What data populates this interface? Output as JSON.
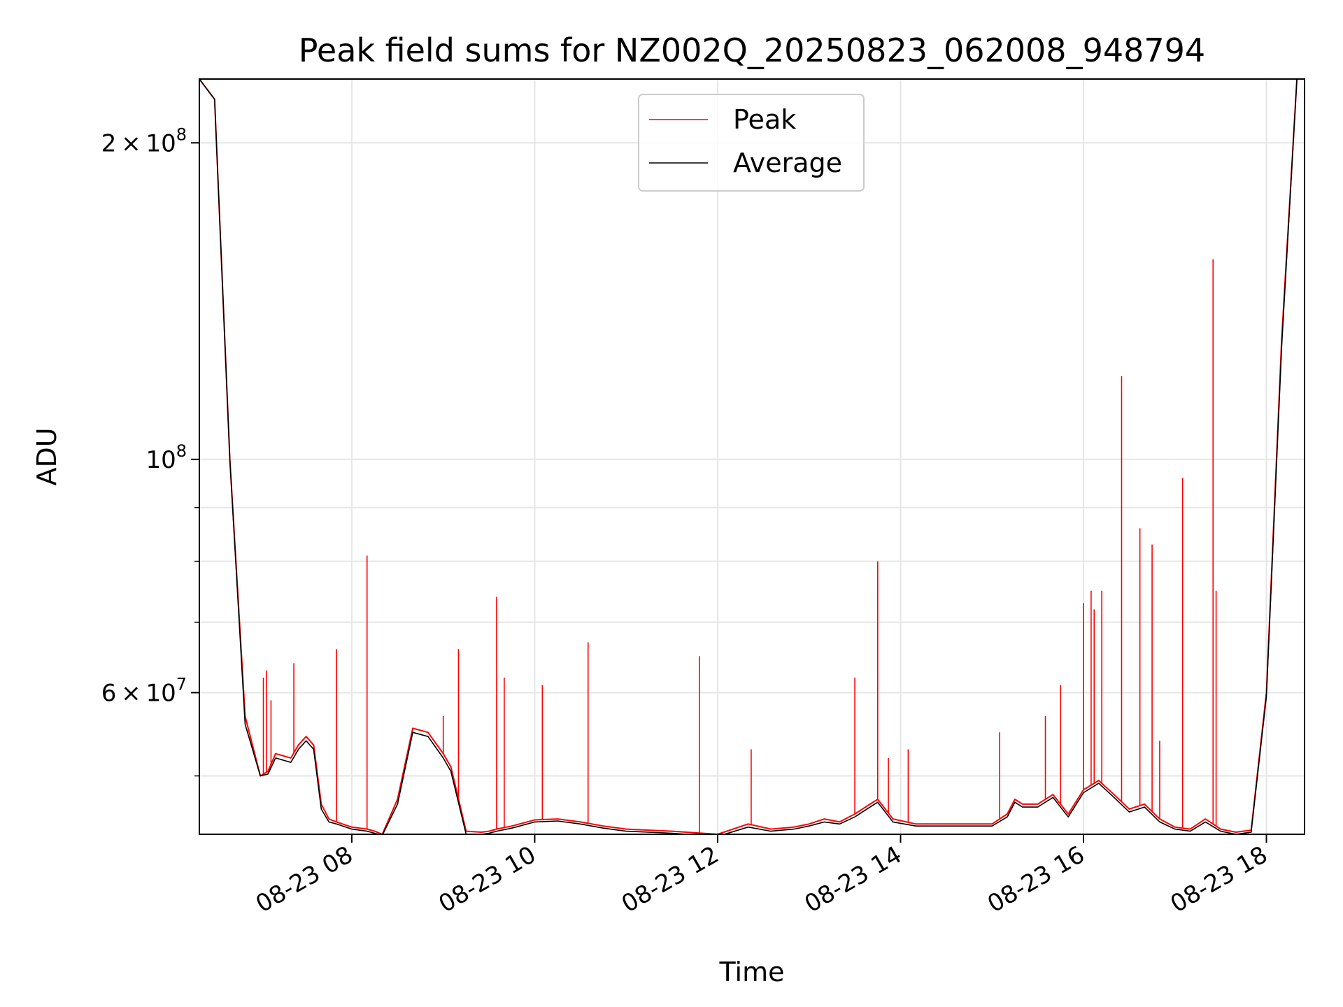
{
  "chart_data": {
    "type": "line",
    "title": "Peak field sums for NZ002Q_20250823_062008_948794",
    "xlabel": "Time",
    "ylabel": "ADU",
    "x_type": "datetime",
    "xlim": [
      "2025-08-23 06:20",
      "2025-08-23 18:25"
    ],
    "ylim": [
      44000000,
      230000000
    ],
    "yscale": "log",
    "grid": true,
    "legend_position": "top-center",
    "x_ticks": [
      {
        "value": "2025-08-23 08:00",
        "label": "08-23 08"
      },
      {
        "value": "2025-08-23 10:00",
        "label": "08-23 10"
      },
      {
        "value": "2025-08-23 12:00",
        "label": "08-23 12"
      },
      {
        "value": "2025-08-23 14:00",
        "label": "08-23 14"
      },
      {
        "value": "2025-08-23 16:00",
        "label": "08-23 16"
      },
      {
        "value": "2025-08-23 18:00",
        "label": "08-23 18"
      }
    ],
    "y_ticks": [
      {
        "value": 200000000,
        "mantissa": "2",
        "exponent": "8"
      },
      {
        "value": 100000000,
        "mantissa": "",
        "exponent": "8"
      },
      {
        "value": 60000000,
        "mantissa": "6",
        "exponent": "7"
      }
    ],
    "y_minor_ticks": [
      50000000,
      70000000,
      80000000,
      90000000
    ],
    "series": [
      {
        "name": "Peak",
        "color": "#ff0000",
        "x": [
          "2025-08-23 06:20",
          "2025-08-23 06:30",
          "2025-08-23 06:40",
          "2025-08-23 06:50",
          "2025-08-23 07:00",
          "2025-08-23 07:05",
          "2025-08-23 07:10",
          "2025-08-23 07:20",
          "2025-08-23 07:25",
          "2025-08-23 07:30",
          "2025-08-23 07:35",
          "2025-08-23 07:40",
          "2025-08-23 07:45",
          "2025-08-23 07:50",
          "2025-08-23 08:00",
          "2025-08-23 08:10",
          "2025-08-23 08:15",
          "2025-08-23 08:20",
          "2025-08-23 08:30",
          "2025-08-23 08:40",
          "2025-08-23 08:50",
          "2025-08-23 09:00",
          "2025-08-23 09:05",
          "2025-08-23 09:15",
          "2025-08-23 09:25",
          "2025-08-23 09:30",
          "2025-08-23 09:35",
          "2025-08-23 09:45",
          "2025-08-23 10:00",
          "2025-08-23 10:15",
          "2025-08-23 10:30",
          "2025-08-23 10:45",
          "2025-08-23 11:00",
          "2025-08-23 11:30",
          "2025-08-23 12:00",
          "2025-08-23 12:20",
          "2025-08-23 12:35",
          "2025-08-23 12:50",
          "2025-08-23 13:00",
          "2025-08-23 13:10",
          "2025-08-23 13:20",
          "2025-08-23 13:30",
          "2025-08-23 13:40",
          "2025-08-23 13:45",
          "2025-08-23 13:55",
          "2025-08-23 14:10",
          "2025-08-23 14:30",
          "2025-08-23 15:00",
          "2025-08-23 15:10",
          "2025-08-23 15:15",
          "2025-08-23 15:20",
          "2025-08-23 15:30",
          "2025-08-23 15:40",
          "2025-08-23 15:50",
          "2025-08-23 16:00",
          "2025-08-23 16:10",
          "2025-08-23 16:20",
          "2025-08-23 16:30",
          "2025-08-23 16:40",
          "2025-08-23 16:50",
          "2025-08-23 17:00",
          "2025-08-23 17:10",
          "2025-08-23 17:20",
          "2025-08-23 17:30",
          "2025-08-23 17:40",
          "2025-08-23 17:50",
          "2025-08-23 18:00",
          "2025-08-23 18:10",
          "2025-08-23 18:20"
        ],
        "y": [
          230000000,
          220000000,
          100000000,
          57000000,
          50000000,
          50500000,
          52500000,
          52000000,
          53500000,
          54500000,
          53500000,
          47000000,
          45500000,
          45200000,
          44700000,
          44500000,
          44300000,
          44000000,
          47500000,
          55500000,
          55000000,
          52500000,
          51000000,
          44300000,
          44200000,
          44300000,
          44500000,
          44800000,
          45400000,
          45500000,
          45200000,
          44800000,
          44500000,
          44300000,
          44000000,
          45000000,
          44500000,
          44700000,
          45000000,
          45500000,
          45200000,
          46000000,
          47000000,
          47500000,
          45500000,
          45000000,
          45000000,
          45000000,
          46000000,
          47500000,
          47000000,
          47000000,
          48000000,
          46000000,
          48500000,
          49500000,
          48000000,
          46500000,
          47000000,
          45500000,
          44700000,
          44500000,
          45500000,
          44500000,
          44200000,
          44400000,
          60000000,
          130000000,
          230000000
        ],
        "spikes": [
          {
            "x": "2025-08-23 07:02",
            "y": 62000000
          },
          {
            "x": "2025-08-23 07:04",
            "y": 63000000
          },
          {
            "x": "2025-08-23 07:07",
            "y": 59000000
          },
          {
            "x": "2025-08-23 07:22",
            "y": 64000000
          },
          {
            "x": "2025-08-23 07:50",
            "y": 66000000
          },
          {
            "x": "2025-08-23 08:10",
            "y": 81000000
          },
          {
            "x": "2025-08-23 09:00",
            "y": 57000000
          },
          {
            "x": "2025-08-23 09:10",
            "y": 66000000
          },
          {
            "x": "2025-08-23 09:35",
            "y": 74000000
          },
          {
            "x": "2025-08-23 09:40",
            "y": 62000000
          },
          {
            "x": "2025-08-23 10:05",
            "y": 61000000
          },
          {
            "x": "2025-08-23 10:35",
            "y": 67000000
          },
          {
            "x": "2025-08-23 11:48",
            "y": 65000000
          },
          {
            "x": "2025-08-23 12:22",
            "y": 53000000
          },
          {
            "x": "2025-08-23 13:30",
            "y": 62000000
          },
          {
            "x": "2025-08-23 13:45",
            "y": 80000000
          },
          {
            "x": "2025-08-23 13:52",
            "y": 52000000
          },
          {
            "x": "2025-08-23 14:05",
            "y": 53000000
          },
          {
            "x": "2025-08-23 15:05",
            "y": 55000000
          },
          {
            "x": "2025-08-23 15:35",
            "y": 57000000
          },
          {
            "x": "2025-08-23 15:45",
            "y": 61000000
          },
          {
            "x": "2025-08-23 16:00",
            "y": 73000000
          },
          {
            "x": "2025-08-23 16:05",
            "y": 75000000
          },
          {
            "x": "2025-08-23 16:07",
            "y": 72000000
          },
          {
            "x": "2025-08-23 16:12",
            "y": 75000000
          },
          {
            "x": "2025-08-23 16:25",
            "y": 120000000
          },
          {
            "x": "2025-08-23 16:37",
            "y": 86000000
          },
          {
            "x": "2025-08-23 16:45",
            "y": 83000000
          },
          {
            "x": "2025-08-23 16:50",
            "y": 54000000
          },
          {
            "x": "2025-08-23 17:05",
            "y": 96000000
          },
          {
            "x": "2025-08-23 17:25",
            "y": 155000000
          },
          {
            "x": "2025-08-23 17:27",
            "y": 75000000
          }
        ]
      },
      {
        "name": "Average",
        "color": "#000000",
        "x": [
          "2025-08-23 06:20",
          "2025-08-23 06:30",
          "2025-08-23 06:40",
          "2025-08-23 06:50",
          "2025-08-23 07:00",
          "2025-08-23 07:05",
          "2025-08-23 07:10",
          "2025-08-23 07:20",
          "2025-08-23 07:25",
          "2025-08-23 07:30",
          "2025-08-23 07:35",
          "2025-08-23 07:40",
          "2025-08-23 07:45",
          "2025-08-23 07:50",
          "2025-08-23 08:00",
          "2025-08-23 08:10",
          "2025-08-23 08:15",
          "2025-08-23 08:20",
          "2025-08-23 08:30",
          "2025-08-23 08:40",
          "2025-08-23 08:50",
          "2025-08-23 09:00",
          "2025-08-23 09:05",
          "2025-08-23 09:15",
          "2025-08-23 09:25",
          "2025-08-23 09:30",
          "2025-08-23 09:35",
          "2025-08-23 09:45",
          "2025-08-23 10:00",
          "2025-08-23 10:15",
          "2025-08-23 10:30",
          "2025-08-23 10:45",
          "2025-08-23 11:00",
          "2025-08-23 11:30",
          "2025-08-23 12:00",
          "2025-08-23 12:20",
          "2025-08-23 12:35",
          "2025-08-23 12:50",
          "2025-08-23 13:00",
          "2025-08-23 13:10",
          "2025-08-23 13:20",
          "2025-08-23 13:30",
          "2025-08-23 13:40",
          "2025-08-23 13:45",
          "2025-08-23 13:55",
          "2025-08-23 14:10",
          "2025-08-23 14:30",
          "2025-08-23 15:00",
          "2025-08-23 15:10",
          "2025-08-23 15:15",
          "2025-08-23 15:20",
          "2025-08-23 15:30",
          "2025-08-23 15:40",
          "2025-08-23 15:50",
          "2025-08-23 16:00",
          "2025-08-23 16:10",
          "2025-08-23 16:20",
          "2025-08-23 16:30",
          "2025-08-23 16:40",
          "2025-08-23 16:50",
          "2025-08-23 17:00",
          "2025-08-23 17:10",
          "2025-08-23 17:20",
          "2025-08-23 17:30",
          "2025-08-23 17:40",
          "2025-08-23 17:50",
          "2025-08-23 18:00",
          "2025-08-23 18:10",
          "2025-08-23 18:20"
        ],
        "y": [
          230000000,
          220000000,
          100000000,
          56000000,
          50000000,
          50200000,
          52000000,
          51500000,
          53000000,
          54000000,
          53000000,
          46500000,
          45200000,
          45000000,
          44500000,
          44300000,
          44100000,
          43900000,
          47000000,
          55000000,
          54500000,
          52000000,
          50500000,
          44000000,
          44000000,
          44100000,
          44300000,
          44600000,
          45200000,
          45300000,
          45000000,
          44600000,
          44300000,
          44100000,
          43800000,
          44700000,
          44300000,
          44500000,
          44800000,
          45200000,
          45000000,
          45700000,
          46700000,
          47200000,
          45200000,
          44800000,
          44800000,
          44800000,
          45700000,
          47200000,
          46700000,
          46700000,
          47700000,
          45700000,
          48200000,
          49200000,
          47700000,
          46200000,
          46700000,
          45200000,
          44500000,
          44300000,
          45200000,
          44300000,
          44000000,
          44200000,
          59500000,
          128000000,
          230000000
        ]
      }
    ]
  }
}
